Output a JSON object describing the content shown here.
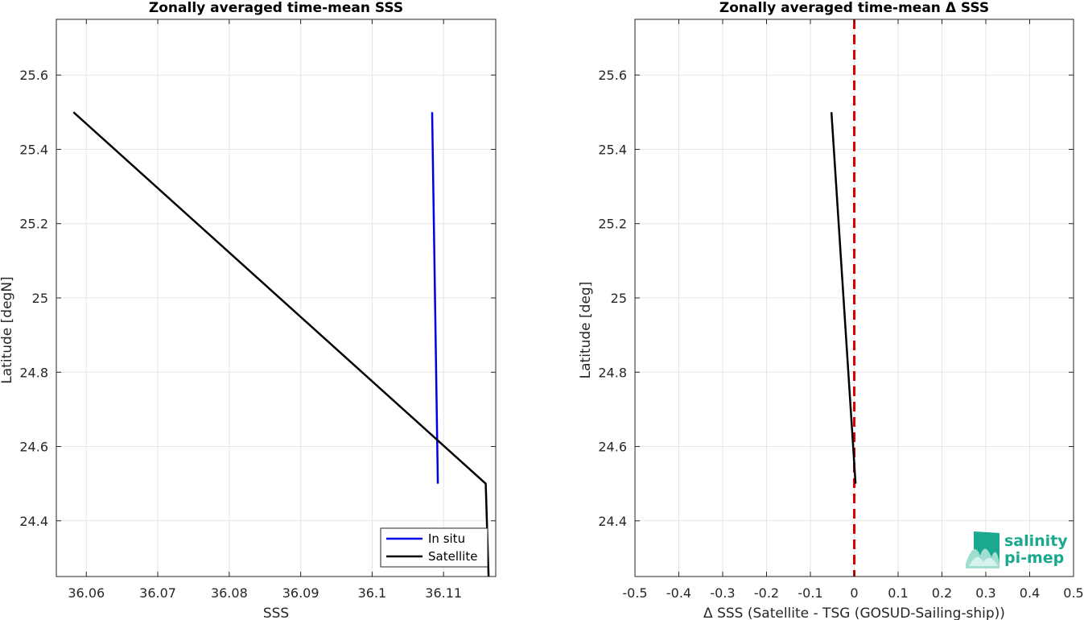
{
  "chart_data": [
    {
      "type": "line",
      "title": "Zonally averaged time-mean SSS",
      "xlabel": "SSS",
      "ylabel": "Latitude [degN]",
      "xlim": [
        36.0558,
        36.1173
      ],
      "ylim": [
        24.25,
        25.75
      ],
      "xticks": [
        36.06,
        36.07,
        36.08,
        36.09,
        36.1,
        36.11
      ],
      "xticklabels": [
        "36.06",
        "36.07",
        "36.08",
        "36.09",
        "36.1",
        "36.11"
      ],
      "yticks": [
        24.4,
        24.6,
        24.8,
        25,
        25.2,
        25.4,
        25.6
      ],
      "yticklabels": [
        "24.4",
        "24.6",
        "24.8",
        "25",
        "25.2",
        "25.4",
        "25.6"
      ],
      "grid": true,
      "legend": "bottom-right",
      "series": [
        {
          "name": "In situ",
          "color": "#0000e6",
          "x": [
            36.1084,
            36.1092
          ],
          "y": [
            25.5,
            24.5
          ]
        },
        {
          "name": "Satellite",
          "color": "#000000",
          "x": [
            36.0582,
            36.1159,
            36.1163
          ],
          "y": [
            25.5,
            24.5,
            24.25
          ]
        }
      ]
    },
    {
      "type": "line",
      "title": "Zonally averaged time-mean Δ SSS",
      "xlabel": "Δ SSS (Satellite - TSG (GOSUD-Sailing-ship))",
      "ylabel": "Latitude [deg]",
      "xlim": [
        -0.5,
        0.5
      ],
      "ylim": [
        24.25,
        25.75
      ],
      "xticks": [
        -0.5,
        -0.4,
        -0.3,
        -0.2,
        -0.1,
        0,
        0.1,
        0.2,
        0.3,
        0.4,
        0.5
      ],
      "xticklabels": [
        "-0.5",
        "-0.4",
        "-0.3",
        "-0.2",
        "-0.1",
        "0",
        "0.1",
        "0.2",
        "0.3",
        "0.4",
        "0.5"
      ],
      "yticks": [
        24.4,
        24.6,
        24.8,
        25,
        25.2,
        25.4,
        25.6
      ],
      "yticklabels": [
        "24.4",
        "24.6",
        "24.8",
        "25",
        "25.2",
        "25.4",
        "25.6"
      ],
      "grid": true,
      "series": [
        {
          "color": "#000000",
          "x": [
            -0.052,
            0.003
          ],
          "y": [
            25.5,
            24.5
          ]
        }
      ],
      "reference_line": {
        "x": 0,
        "color": "#e00000",
        "style": "dashed"
      }
    }
  ],
  "logo": {
    "line1": "salinity",
    "line2": "pi-mep",
    "color": "#1aa88e"
  }
}
